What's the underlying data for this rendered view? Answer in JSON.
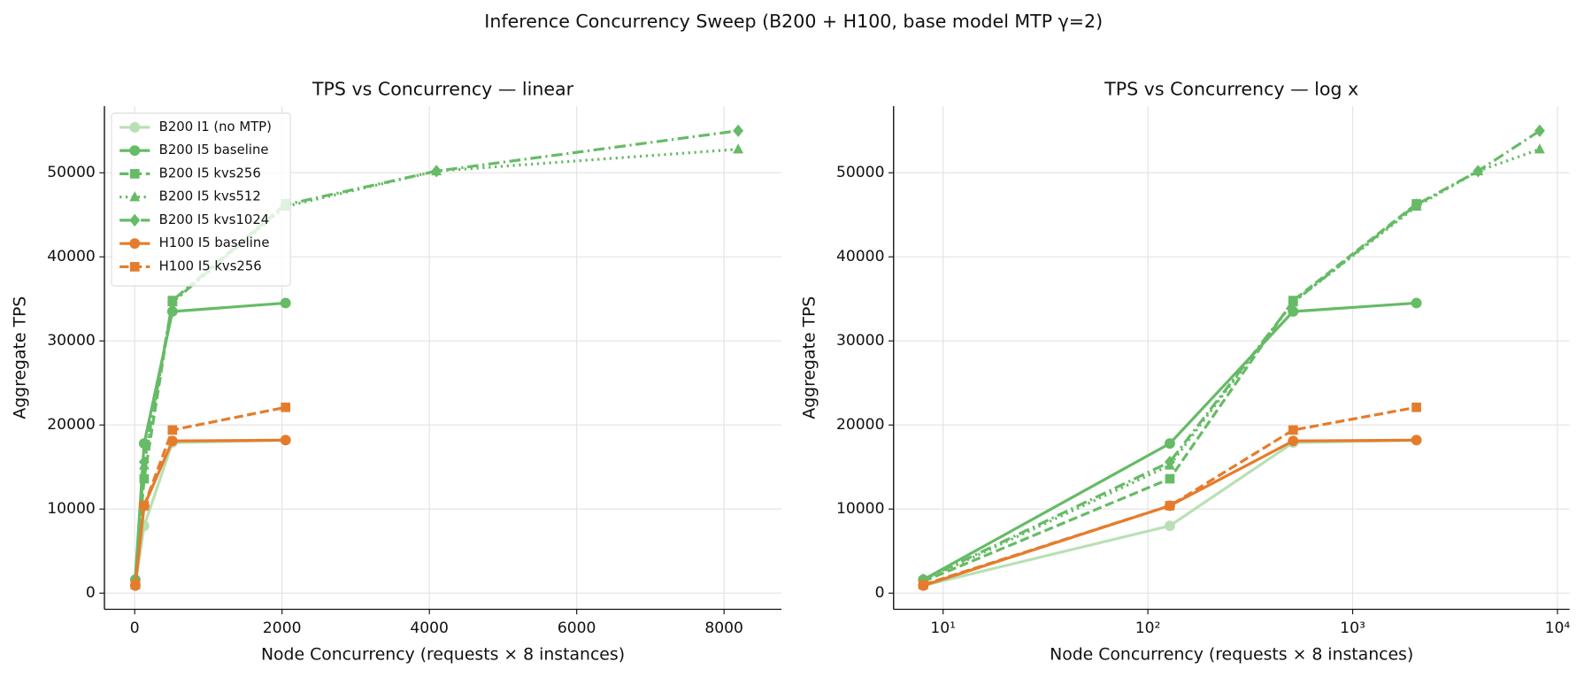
{
  "title": "Inference Concurrency Sweep  (B200 + H100, base model MTP γ=2)",
  "chart_data": [
    {
      "type": "line",
      "title": "TPS vs Concurrency — linear",
      "x_label": "Node Concurrency  (requests × 8 instances)",
      "y_label": "Aggregate TPS",
      "xscale": "linear",
      "xlim": [
        -411,
        8779
      ],
      "ylim": [
        -1923,
        57930
      ],
      "xticks": [
        0,
        2000,
        4000,
        6000,
        8000
      ],
      "yticks": [
        0,
        10000,
        20000,
        30000,
        40000,
        50000
      ],
      "grid": true,
      "legend": "upper left",
      "series": [
        {
          "name": "B200 I1 (no MTP)",
          "color": "#b9e0b5",
          "marker": "circle",
          "linestyle": "solid",
          "x": [
            8,
            128,
            512,
            2048
          ],
          "values": [
            900,
            8000,
            17900,
            18200
          ]
        },
        {
          "name": "B200 I5 baseline",
          "color": "#66bb66",
          "marker": "circle",
          "linestyle": "solid",
          "x": [
            8,
            128,
            512,
            2048
          ],
          "values": [
            1600,
            17800,
            33500,
            34500
          ]
        },
        {
          "name": "B200 I5 kvs256",
          "color": "#66bb66",
          "marker": "square",
          "linestyle": "dashed",
          "x": [
            8,
            128,
            512,
            2048
          ],
          "values": [
            1400,
            13600,
            34800,
            46300
          ]
        },
        {
          "name": "B200 I5 kvs512",
          "color": "#66bb66",
          "marker": "triangle",
          "linestyle": "dotted",
          "x": [
            8,
            128,
            512,
            2048,
            4096,
            8192
          ],
          "values": [
            1500,
            15200,
            34600,
            46000,
            50200,
            52800
          ]
        },
        {
          "name": "B200 I5 kvs1024",
          "color": "#66bb66",
          "marker": "diamond",
          "linestyle": "dashdot",
          "x": [
            8,
            128,
            512,
            2048,
            4096,
            8192
          ],
          "values": [
            1600,
            15600,
            34600,
            46200,
            50200,
            55000
          ]
        },
        {
          "name": "H100 I5 baseline",
          "color": "#e57c2c",
          "marker": "circle",
          "linestyle": "solid",
          "x": [
            8,
            128,
            512,
            2048
          ],
          "values": [
            900,
            10400,
            18100,
            18200
          ]
        },
        {
          "name": "H100 I5 kvs256",
          "color": "#e57c2c",
          "marker": "square",
          "linestyle": "dashed",
          "x": [
            8,
            128,
            512,
            2048
          ],
          "values": [
            1000,
            10400,
            19400,
            22100
          ]
        }
      ]
    },
    {
      "type": "line",
      "title": "TPS vs Concurrency — log x",
      "x_label": "Node Concurrency  (requests × 8 instances)",
      "y_label": "Aggregate TPS",
      "xscale": "log",
      "xlim": [
        5.73,
        11460
      ],
      "ylim": [
        -1923,
        57930
      ],
      "xticks": [
        {
          "value": 10,
          "label": "10¹"
        },
        {
          "value": 100,
          "label": "10²"
        },
        {
          "value": 1000,
          "label": "10³"
        },
        {
          "value": 10000,
          "label": "10⁴"
        }
      ],
      "yticks": [
        0,
        10000,
        20000,
        30000,
        40000,
        50000
      ],
      "grid": true,
      "series": [
        {
          "color": "#b9e0b5",
          "marker": "circle",
          "linestyle": "solid",
          "x": [
            8,
            128,
            512,
            2048
          ],
          "values": [
            900,
            8000,
            17900,
            18200
          ]
        },
        {
          "color": "#66bb66",
          "marker": "circle",
          "linestyle": "solid",
          "x": [
            8,
            128,
            512,
            2048
          ],
          "values": [
            1600,
            17800,
            33500,
            34500
          ]
        },
        {
          "color": "#66bb66",
          "marker": "square",
          "linestyle": "dashed",
          "x": [
            8,
            128,
            512,
            2048
          ],
          "values": [
            1400,
            13600,
            34800,
            46300
          ]
        },
        {
          "color": "#66bb66",
          "marker": "triangle",
          "linestyle": "dotted",
          "x": [
            8,
            128,
            512,
            2048,
            4096,
            8192
          ],
          "values": [
            1500,
            15200,
            34600,
            46000,
            50200,
            52800
          ]
        },
        {
          "color": "#66bb66",
          "marker": "diamond",
          "linestyle": "dashdot",
          "x": [
            8,
            128,
            512,
            2048,
            4096,
            8192
          ],
          "values": [
            1600,
            15600,
            34600,
            46200,
            50200,
            55000
          ]
        },
        {
          "color": "#e57c2c",
          "marker": "circle",
          "linestyle": "solid",
          "x": [
            8,
            128,
            512,
            2048
          ],
          "values": [
            900,
            10400,
            18100,
            18200
          ]
        },
        {
          "color": "#e57c2c",
          "marker": "square",
          "linestyle": "dashed",
          "x": [
            8,
            128,
            512,
            2048
          ],
          "values": [
            1000,
            10400,
            19400,
            22100
          ]
        }
      ]
    }
  ]
}
